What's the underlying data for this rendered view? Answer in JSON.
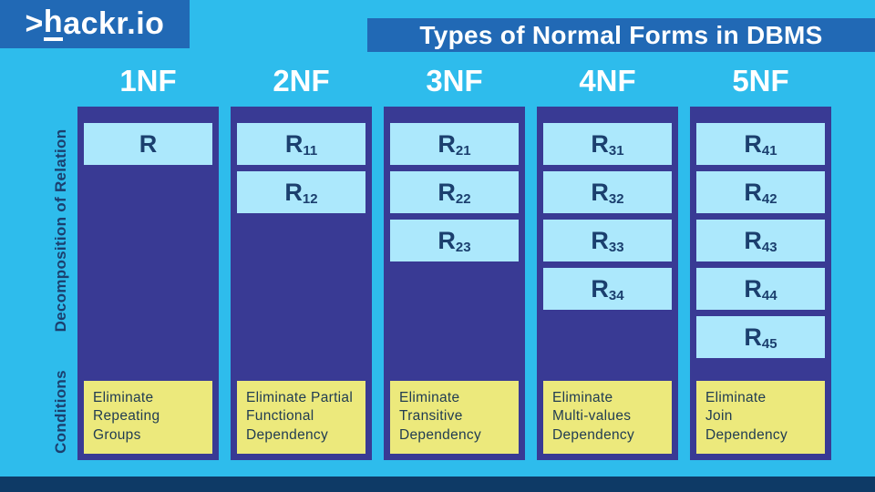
{
  "brand": {
    "prefix": ">",
    "first_letter": "h",
    "rest": "ackr.io"
  },
  "title": "Types of Normal Forms in DBMS",
  "side_labels": {
    "decomposition": "Decomposition of Relation",
    "conditions": "Conditions"
  },
  "columns": [
    {
      "header": "1NF",
      "relations": [
        {
          "base": "R",
          "sub": ""
        }
      ],
      "condition": "Eliminate\nRepeating\nGroups"
    },
    {
      "header": "2NF",
      "relations": [
        {
          "base": "R",
          "sub": "11"
        },
        {
          "base": "R",
          "sub": "12"
        }
      ],
      "condition": "Eliminate Partial\nFunctional\nDependency"
    },
    {
      "header": "3NF",
      "relations": [
        {
          "base": "R",
          "sub": "21"
        },
        {
          "base": "R",
          "sub": "22"
        },
        {
          "base": "R",
          "sub": "23"
        }
      ],
      "condition": "Eliminate\nTransitive\nDependency"
    },
    {
      "header": "4NF",
      "relations": [
        {
          "base": "R",
          "sub": "31"
        },
        {
          "base": "R",
          "sub": "32"
        },
        {
          "base": "R",
          "sub": "33"
        },
        {
          "base": "R",
          "sub": "34"
        }
      ],
      "condition": "Eliminate\nMulti-values\nDependency"
    },
    {
      "header": "5NF",
      "relations": [
        {
          "base": "R",
          "sub": "41"
        },
        {
          "base": "R",
          "sub": "42"
        },
        {
          "base": "R",
          "sub": "43"
        },
        {
          "base": "R",
          "sub": "44"
        },
        {
          "base": "R",
          "sub": "45"
        }
      ],
      "condition": "Eliminate\nJoin\nDependency"
    }
  ],
  "colors": {
    "background": "#2ebcec",
    "banner_blue": "#2169b5",
    "column_navy": "#393a94",
    "relation_box_blue": "#ace8fc",
    "relation_text_navy": "#1b3f6e",
    "condition_box_yellow": "#ece97c",
    "condition_text": "#213c52",
    "footer_navy": "#0e3a66",
    "text_white": "#ffffff"
  }
}
